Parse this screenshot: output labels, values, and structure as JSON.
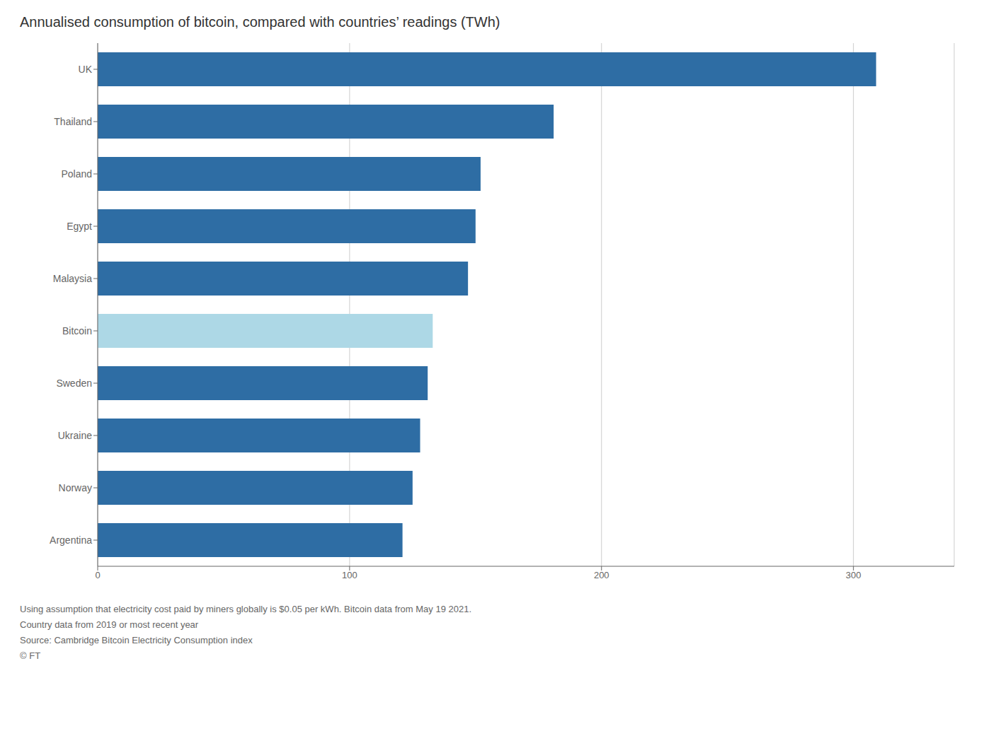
{
  "chart_data": {
    "type": "bar",
    "orientation": "horizontal",
    "title": "Annualised consumption of bitcoin, compared with countries’ readings (TWh)",
    "categories": [
      "UK",
      "Thailand",
      "Poland",
      "Egypt",
      "Malaysia",
      "Bitcoin",
      "Sweden",
      "Ukraine",
      "Norway",
      "Argentina"
    ],
    "values": [
      309,
      181,
      152,
      150,
      147,
      133,
      131,
      128,
      125,
      121
    ],
    "colors": [
      "#2e6da4",
      "#2e6da4",
      "#2e6da4",
      "#2e6da4",
      "#2e6da4",
      "#add8e6",
      "#2e6da4",
      "#2e6da4",
      "#2e6da4",
      "#2e6da4"
    ],
    "xlim": [
      0,
      340
    ],
    "xticks": [
      0,
      100,
      200,
      300
    ],
    "grid": true,
    "annotations": [
      "Using assumption that electricity cost paid by miners globally is $0.05 per kWh. Bitcoin data from May 19 2021.",
      "Country data from 2019 or most recent year",
      "Source: Cambridge Bitcoin Electricity Consumption index",
      "© FT"
    ]
  }
}
